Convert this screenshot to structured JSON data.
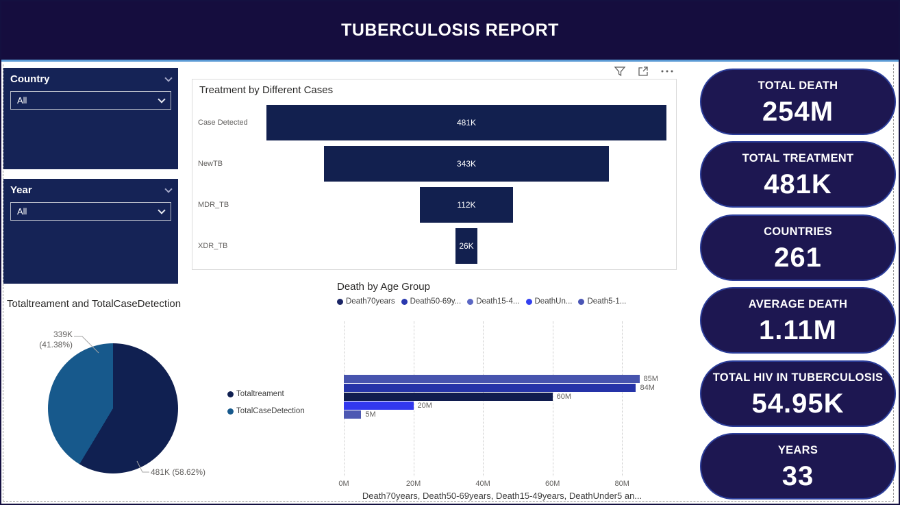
{
  "header": {
    "title": "TUBERCULOSIS REPORT"
  },
  "visual_toolbar": {
    "icons": [
      "filter-icon",
      "focus-mode-icon",
      "more-options-icon"
    ]
  },
  "slicers": [
    {
      "label": "Country",
      "value": "All"
    },
    {
      "label": "Year",
      "value": "All"
    }
  ],
  "kpi_cards": [
    {
      "title": "TOTAL DEATH",
      "value": "254M"
    },
    {
      "title": "TOTAL TREATMENT",
      "value": "481K"
    },
    {
      "title": "COUNTRIES",
      "value": "261"
    },
    {
      "title": "AVERAGE DEATH",
      "value": "1.11M"
    },
    {
      "title": "TOTAL HIV IN TUBERCULOSIS",
      "value": "54.95K"
    },
    {
      "title": "YEARS",
      "value": "33"
    }
  ],
  "colors": {
    "header_bg": "#150d3e",
    "header_underline": "#5b9bd5",
    "slicer_bg": "#152356",
    "kpi_bg": "#1d1751",
    "kpi_border": "#2c3e9a",
    "funnel_bar": "#12204f"
  },
  "chart_data": [
    {
      "type": "bar",
      "subtype": "centered-funnel",
      "title": "Treatment by Different Cases",
      "categories": [
        "Case Detected",
        "NewTB",
        "MDR_TB",
        "XDR_TB"
      ],
      "values": [
        481,
        343,
        112,
        26
      ],
      "value_unit": "K",
      "labels": [
        "481K",
        "343K",
        "112K",
        "26K"
      ],
      "bar_color": "#12204f",
      "grid": false
    },
    {
      "type": "pie",
      "title": "Totaltreament and TotalCaseDetection",
      "slices": [
        {
          "name": "Totaltreament",
          "value": 481,
          "pct": 58.62,
          "label": "481K (58.62%)",
          "color": "#102051"
        },
        {
          "name": "TotalCaseDetection",
          "value": 339,
          "pct": 41.38,
          "label": "339K (41.38%)",
          "color": "#17598c"
        }
      ],
      "label_339": "339K",
      "label_339_pct": "(41.38%)",
      "legend_position": "right"
    },
    {
      "type": "bar",
      "orientation": "horizontal",
      "title": "Death by Age Group",
      "legend": [
        {
          "name": "Death70years",
          "color": "#1b2566"
        },
        {
          "name": "Death50-69y...",
          "color": "#2a39ae"
        },
        {
          "name": "Death15-4...",
          "color": "#5b67c4"
        },
        {
          "name": "DeathUn...",
          "color": "#3340f0"
        },
        {
          "name": "Death5-1...",
          "color": "#4a55b5"
        }
      ],
      "bars": [
        {
          "series": "Death15-49years",
          "label": "85M",
          "value": 85,
          "color": "#4754ae"
        },
        {
          "series": "Death50-69years",
          "label": "84M",
          "value": 84,
          "color": "#2533a8"
        },
        {
          "series": "Death70years",
          "label": "60M",
          "value": 60,
          "color": "#101c4e"
        },
        {
          "series": "DeathUnder5",
          "label": "20M",
          "value": 20,
          "color": "#3238ee"
        },
        {
          "series": "Death5-1...",
          "label": "5M",
          "value": 5,
          "color": "#4d58b2"
        }
      ],
      "x_ticks": [
        "0M",
        "20M",
        "40M",
        "60M",
        "80M"
      ],
      "tick_values": [
        0,
        20,
        40,
        60,
        80
      ],
      "xlim": [
        0,
        90.6
      ],
      "grid": "dotted-vertical",
      "xlabel": "Death70years, Death50-69years, Death15-49years, DeathUnder5 an..."
    }
  ]
}
